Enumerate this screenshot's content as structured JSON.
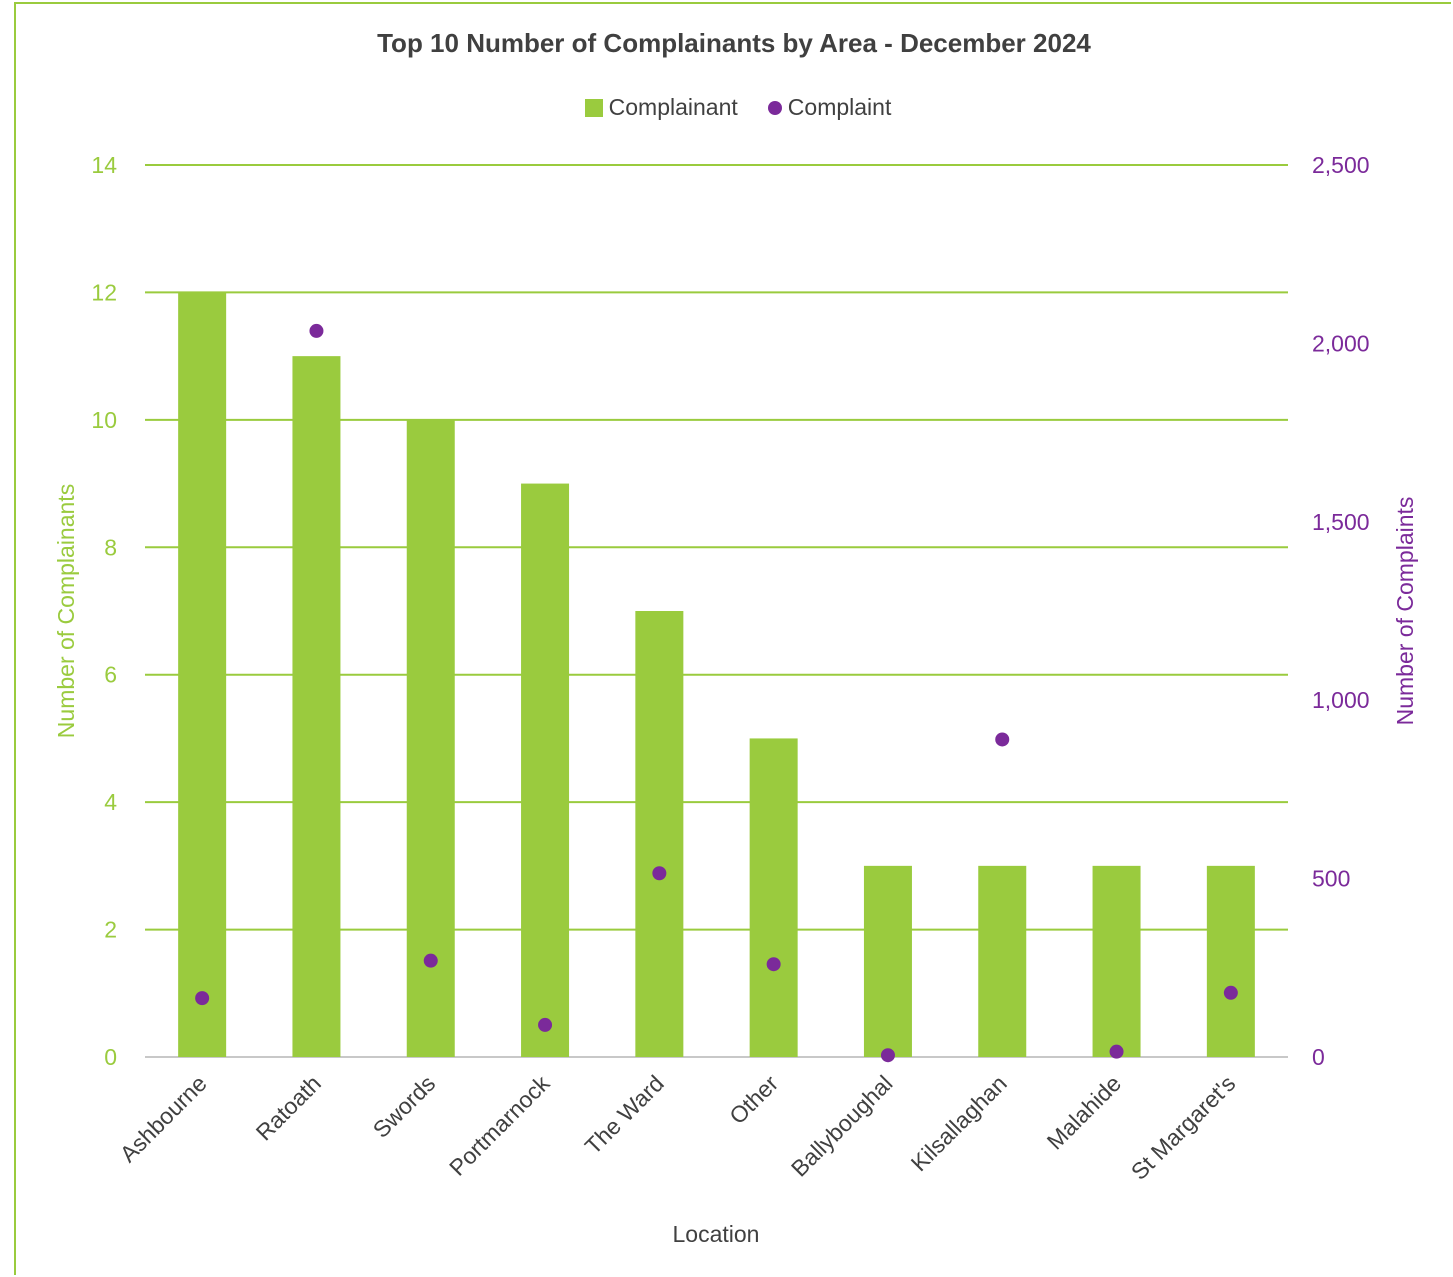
{
  "chart_data": {
    "type": "bar",
    "title": "Top 10 Number of Complainants by Area - December 2024",
    "xlabel": "Location",
    "ylabel": "Number of Complainants",
    "y2label": "Number of Complaints",
    "categories": [
      "Ashbourne",
      "Ratoath",
      "Swords",
      "Portmarnock",
      "The Ward",
      "Other",
      "Ballyboughal",
      "Kilsallaghan",
      "Malahide",
      "St Margaret's"
    ],
    "series": [
      {
        "name": "Complainant",
        "type": "bar",
        "axis": "left",
        "values": [
          12,
          11,
          10,
          9,
          7,
          5,
          3,
          3,
          3,
          3
        ]
      },
      {
        "name": "Complaint",
        "type": "scatter",
        "axis": "right",
        "values": [
          165,
          2035,
          270,
          90,
          515,
          260,
          5,
          890,
          15,
          180
        ]
      }
    ],
    "ylim": [
      0,
      14
    ],
    "y2lim": [
      0,
      2500
    ],
    "yticks": [
      "0",
      "2",
      "4",
      "6",
      "8",
      "10",
      "12",
      "14"
    ],
    "y2ticks": [
      "0",
      "500",
      "1,000",
      "1,500",
      "2,000",
      "2,500"
    ],
    "grid": true,
    "legend_position": "top-center",
    "colors": {
      "bar": "#9ACB3E",
      "dot": "#7B2A9A",
      "left_axis_text": "#9ACB3E",
      "right_axis_text": "#7B2A9A",
      "text": "#404040"
    }
  }
}
